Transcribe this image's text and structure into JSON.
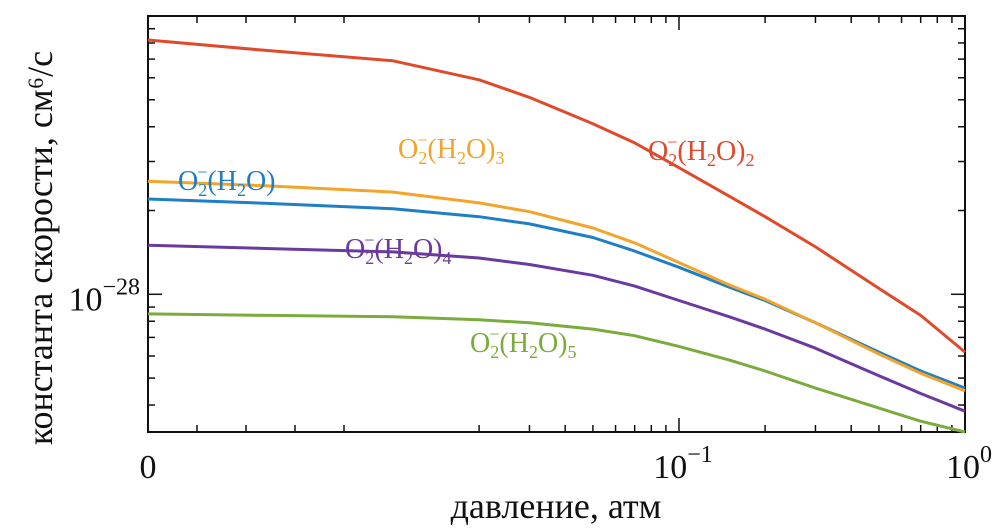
{
  "chart_data": {
    "type": "line",
    "title": "",
    "xlabel": "давление, атм",
    "ylabel": "константа скорости, см⁶/с",
    "x_tick_labels": [
      {
        "base": "0",
        "exp": "",
        "value": 0
      },
      {
        "base": "10",
        "exp": "−1",
        "value": 0.1
      },
      {
        "base": "10",
        "exp": "0",
        "value": 1
      }
    ],
    "y_tick_labels": [
      {
        "base": "10",
        "exp": "−28",
        "value": 1e-28
      }
    ],
    "xlim": [
      0,
      1
    ],
    "ylim": [
      3.2e-29,
      1e-27
    ],
    "series": [
      {
        "name": "O2−(H2O)",
        "label_main": "O",
        "label_sub": "2",
        "label_sup": "−",
        "label_rest": "(H",
        "label_sub2": "2",
        "label_tail": "O)",
        "label_sub3": "",
        "color": "#1f7fc4",
        "x": [
          0,
          0.005,
          0.01,
          0.02,
          0.03,
          0.05,
          0.07,
          0.1,
          0.15,
          0.2,
          0.3,
          0.5,
          0.7,
          1.0
        ],
        "y": [
          2.2e-28,
          2.12e-28,
          2.03e-28,
          1.9e-28,
          1.79e-28,
          1.6e-28,
          1.43e-28,
          1.25e-28,
          1.06e-28,
          9.5e-29,
          7.9e-29,
          6.2e-29,
          5.3e-29,
          4.6e-29
        ]
      },
      {
        "name": "O2−(H2O)2",
        "label_main": "O",
        "label_sub": "2",
        "label_sup": "−",
        "label_rest": "(H",
        "label_sub2": "2",
        "label_tail": "O)",
        "label_sub3": "2",
        "color": "#e04a2a",
        "x": [
          0,
          0.005,
          0.01,
          0.02,
          0.03,
          0.05,
          0.07,
          0.1,
          0.15,
          0.2,
          0.3,
          0.5,
          0.7,
          1.0
        ],
        "y": [
          8.2e-28,
          7.5e-28,
          6.9e-28,
          5.9e-28,
          5.1e-28,
          4.1e-28,
          3.5e-28,
          2.85e-28,
          2.25e-28,
          1.9e-28,
          1.48e-28,
          1.05e-28,
          8.4e-29,
          6.2e-29
        ]
      },
      {
        "name": "O2−(H2O)3",
        "label_main": "O",
        "label_sub": "2",
        "label_sup": "−",
        "label_rest": "(H",
        "label_sub2": "2",
        "label_tail": "O)",
        "label_sub3": "3",
        "color": "#f2a52a",
        "x": [
          0,
          0.005,
          0.01,
          0.02,
          0.03,
          0.05,
          0.07,
          0.1,
          0.15,
          0.2,
          0.3,
          0.5,
          0.7,
          1.0
        ],
        "y": [
          2.55e-28,
          2.45e-28,
          2.33e-28,
          2.13e-28,
          1.98e-28,
          1.73e-28,
          1.53e-28,
          1.3e-28,
          1.08e-28,
          9.6e-29,
          7.9e-29,
          6.1e-29,
          5.2e-29,
          4.5e-29
        ]
      },
      {
        "name": "O2−(H2O)4",
        "label_main": "O",
        "label_sub": "2",
        "label_sup": "−",
        "label_rest": "(H",
        "label_sub2": "2",
        "label_tail": "O)",
        "label_sub3": "4",
        "color": "#6a3a9e",
        "x": [
          0,
          0.005,
          0.01,
          0.02,
          0.03,
          0.05,
          0.07,
          0.1,
          0.15,
          0.2,
          0.3,
          0.5,
          0.7,
          1.0
        ],
        "y": [
          1.5e-28,
          1.46e-28,
          1.42e-28,
          1.35e-28,
          1.28e-28,
          1.17e-28,
          1.07e-28,
          9.5e-29,
          8.3e-29,
          7.5e-29,
          6.4e-29,
          5.1e-29,
          4.4e-29,
          3.8e-29
        ]
      },
      {
        "name": "O2−(H2O)5",
        "label_main": "O",
        "label_sub": "2",
        "label_sup": "−",
        "label_rest": "(H",
        "label_sub2": "2",
        "label_tail": "O)",
        "label_sub3": "5",
        "color": "#7aab3c",
        "x": [
          0,
          0.005,
          0.01,
          0.02,
          0.03,
          0.05,
          0.07,
          0.1,
          0.15,
          0.2,
          0.3,
          0.5,
          0.7,
          1.0
        ],
        "y": [
          8.5e-29,
          8.4e-29,
          8.3e-29,
          8.1e-29,
          7.9e-29,
          7.5e-29,
          7.1e-29,
          6.5e-29,
          5.8e-29,
          5.3e-29,
          4.6e-29,
          3.9e-29,
          3.5e-29,
          3.2e-29
        ]
      }
    ]
  }
}
